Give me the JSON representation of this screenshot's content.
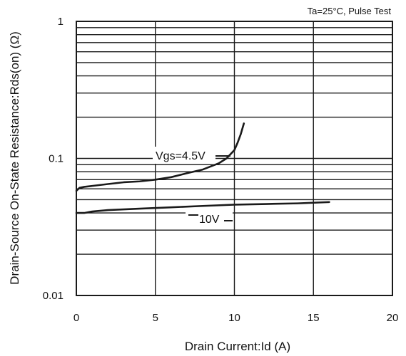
{
  "chart_data": {
    "type": "line",
    "condition": "Ta=25°C, Pulse Test",
    "xlabel": "Drain Current:Id  (A)",
    "ylabel": "Drain-Source On-State Resistance:Rds(on)  (Ω)",
    "xlim": [
      0,
      20
    ],
    "ylim": [
      0.01,
      1
    ],
    "y_scale": "log",
    "grid": true,
    "x_ticks": [
      "0",
      "5",
      "10",
      "15",
      "20"
    ],
    "y_ticks": [
      "0.01",
      "0.1",
      "1"
    ],
    "series": [
      {
        "name": "Vgs=4.5V",
        "x": [
          0,
          0.2,
          0.5,
          1,
          2,
          3,
          4,
          5,
          6,
          7,
          8,
          9,
          9.5,
          10,
          10.2,
          10.4,
          10.6
        ],
        "y": [
          0.058,
          0.061,
          0.062,
          0.063,
          0.065,
          0.067,
          0.068,
          0.07,
          0.073,
          0.078,
          0.083,
          0.092,
          0.1,
          0.115,
          0.13,
          0.15,
          0.18
        ]
      },
      {
        "name": "10V",
        "x": [
          0,
          0.5,
          1,
          2,
          4,
          6,
          8,
          10,
          12,
          14,
          16
        ],
        "y": [
          0.04,
          0.04,
          0.041,
          0.042,
          0.043,
          0.044,
          0.045,
          0.046,
          0.0465,
          0.047,
          0.048
        ]
      }
    ],
    "colors": {
      "plot_background": "#ffffff",
      "frame": "#1a1a1a",
      "grid": "#1a1a1a",
      "series": "#1a1a1a",
      "text": "#111111"
    }
  }
}
